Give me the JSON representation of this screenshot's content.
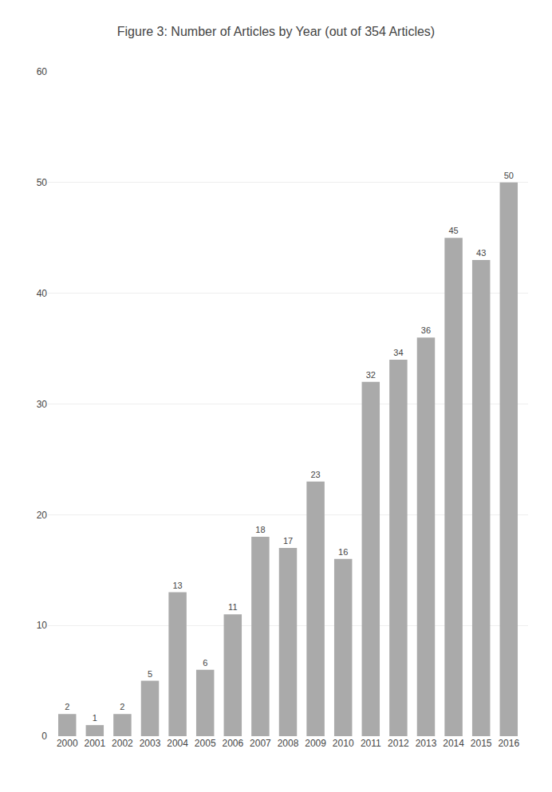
{
  "chart_data": {
    "type": "bar",
    "title": "Figure 3: Number of Articles by Year (out of 354 Articles)",
    "categories": [
      "2000",
      "2001",
      "2002",
      "2003",
      "2004",
      "2005",
      "2006",
      "2007",
      "2008",
      "2009",
      "2010",
      "2011",
      "2012",
      "2013",
      "2014",
      "2015",
      "2016"
    ],
    "values": [
      2,
      1,
      2,
      5,
      13,
      6,
      11,
      18,
      17,
      23,
      16,
      32,
      34,
      36,
      45,
      43,
      50
    ],
    "color": "#aaaaaa",
    "ylim": [
      0,
      60
    ],
    "yticks": [
      0,
      10,
      20,
      30,
      40,
      50,
      60
    ],
    "grid": true,
    "data_labels": true
  }
}
